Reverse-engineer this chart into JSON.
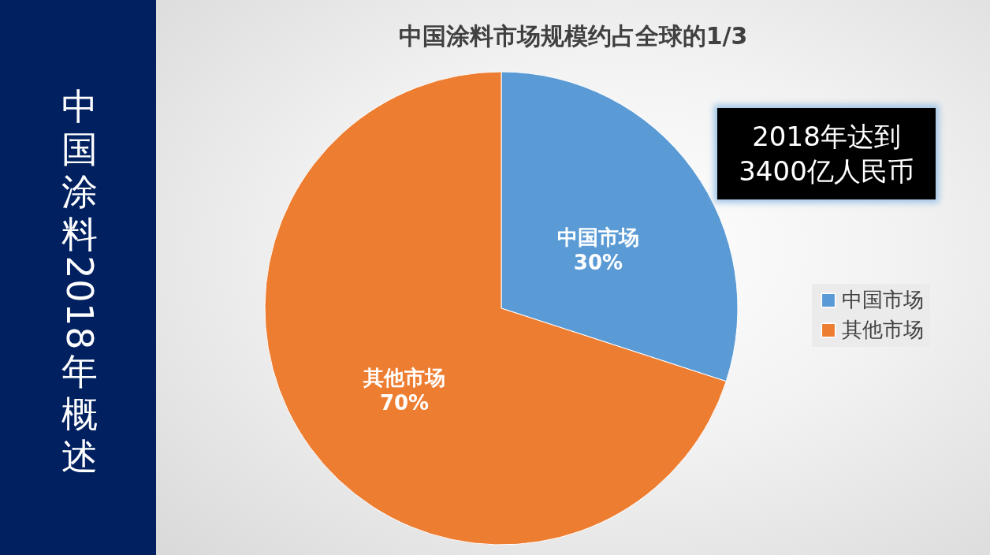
{
  "chart_data": {
    "type": "pie",
    "title": "中国涂料市场规模约占全球的1/3",
    "categories": [
      "中国市场",
      "其他市场"
    ],
    "values": [
      30,
      70
    ],
    "colors": [
      "#5b9bd5",
      "#ed7d31"
    ],
    "value_labels": [
      "30%",
      "70%"
    ],
    "legend": "right",
    "annotations": [
      "中国涂料2018年概述",
      "2018年达到\n3400亿人民币"
    ]
  }
}
